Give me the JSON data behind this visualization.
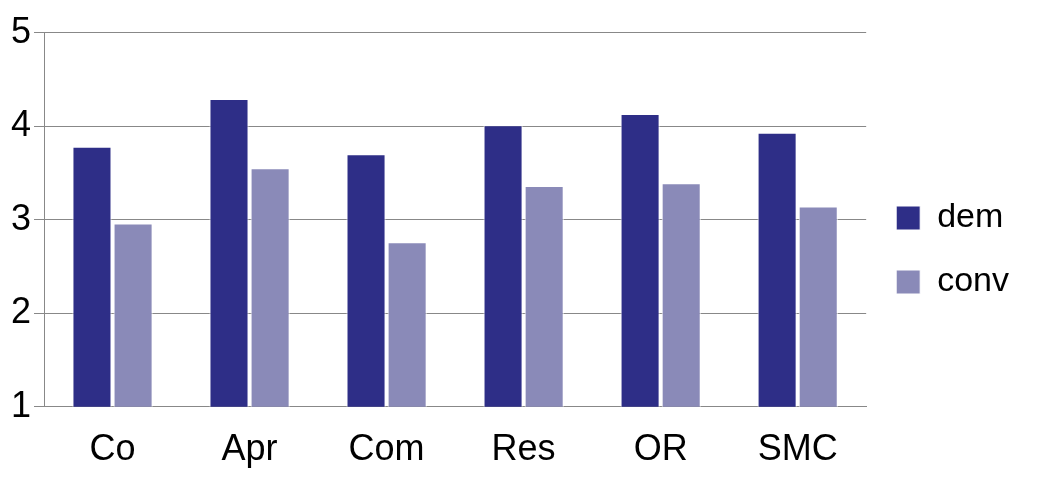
{
  "chart_data": {
    "type": "bar",
    "categories": [
      "Co",
      "Apr",
      "Com",
      "Res",
      "OR",
      "SMC"
    ],
    "series": [
      {
        "name": "dem",
        "color": "#2e2e87",
        "values": [
          3.78,
          4.29,
          3.7,
          4.01,
          4.13,
          3.93
        ]
      },
      {
        "name": "conv",
        "color": "#8a8ab8",
        "values": [
          2.96,
          3.55,
          2.76,
          3.36,
          3.39,
          3.14
        ]
      }
    ],
    "ylim": [
      1,
      5
    ],
    "yticks": [
      1,
      2,
      3,
      4,
      5
    ],
    "grid": "y",
    "legend": "right"
  }
}
